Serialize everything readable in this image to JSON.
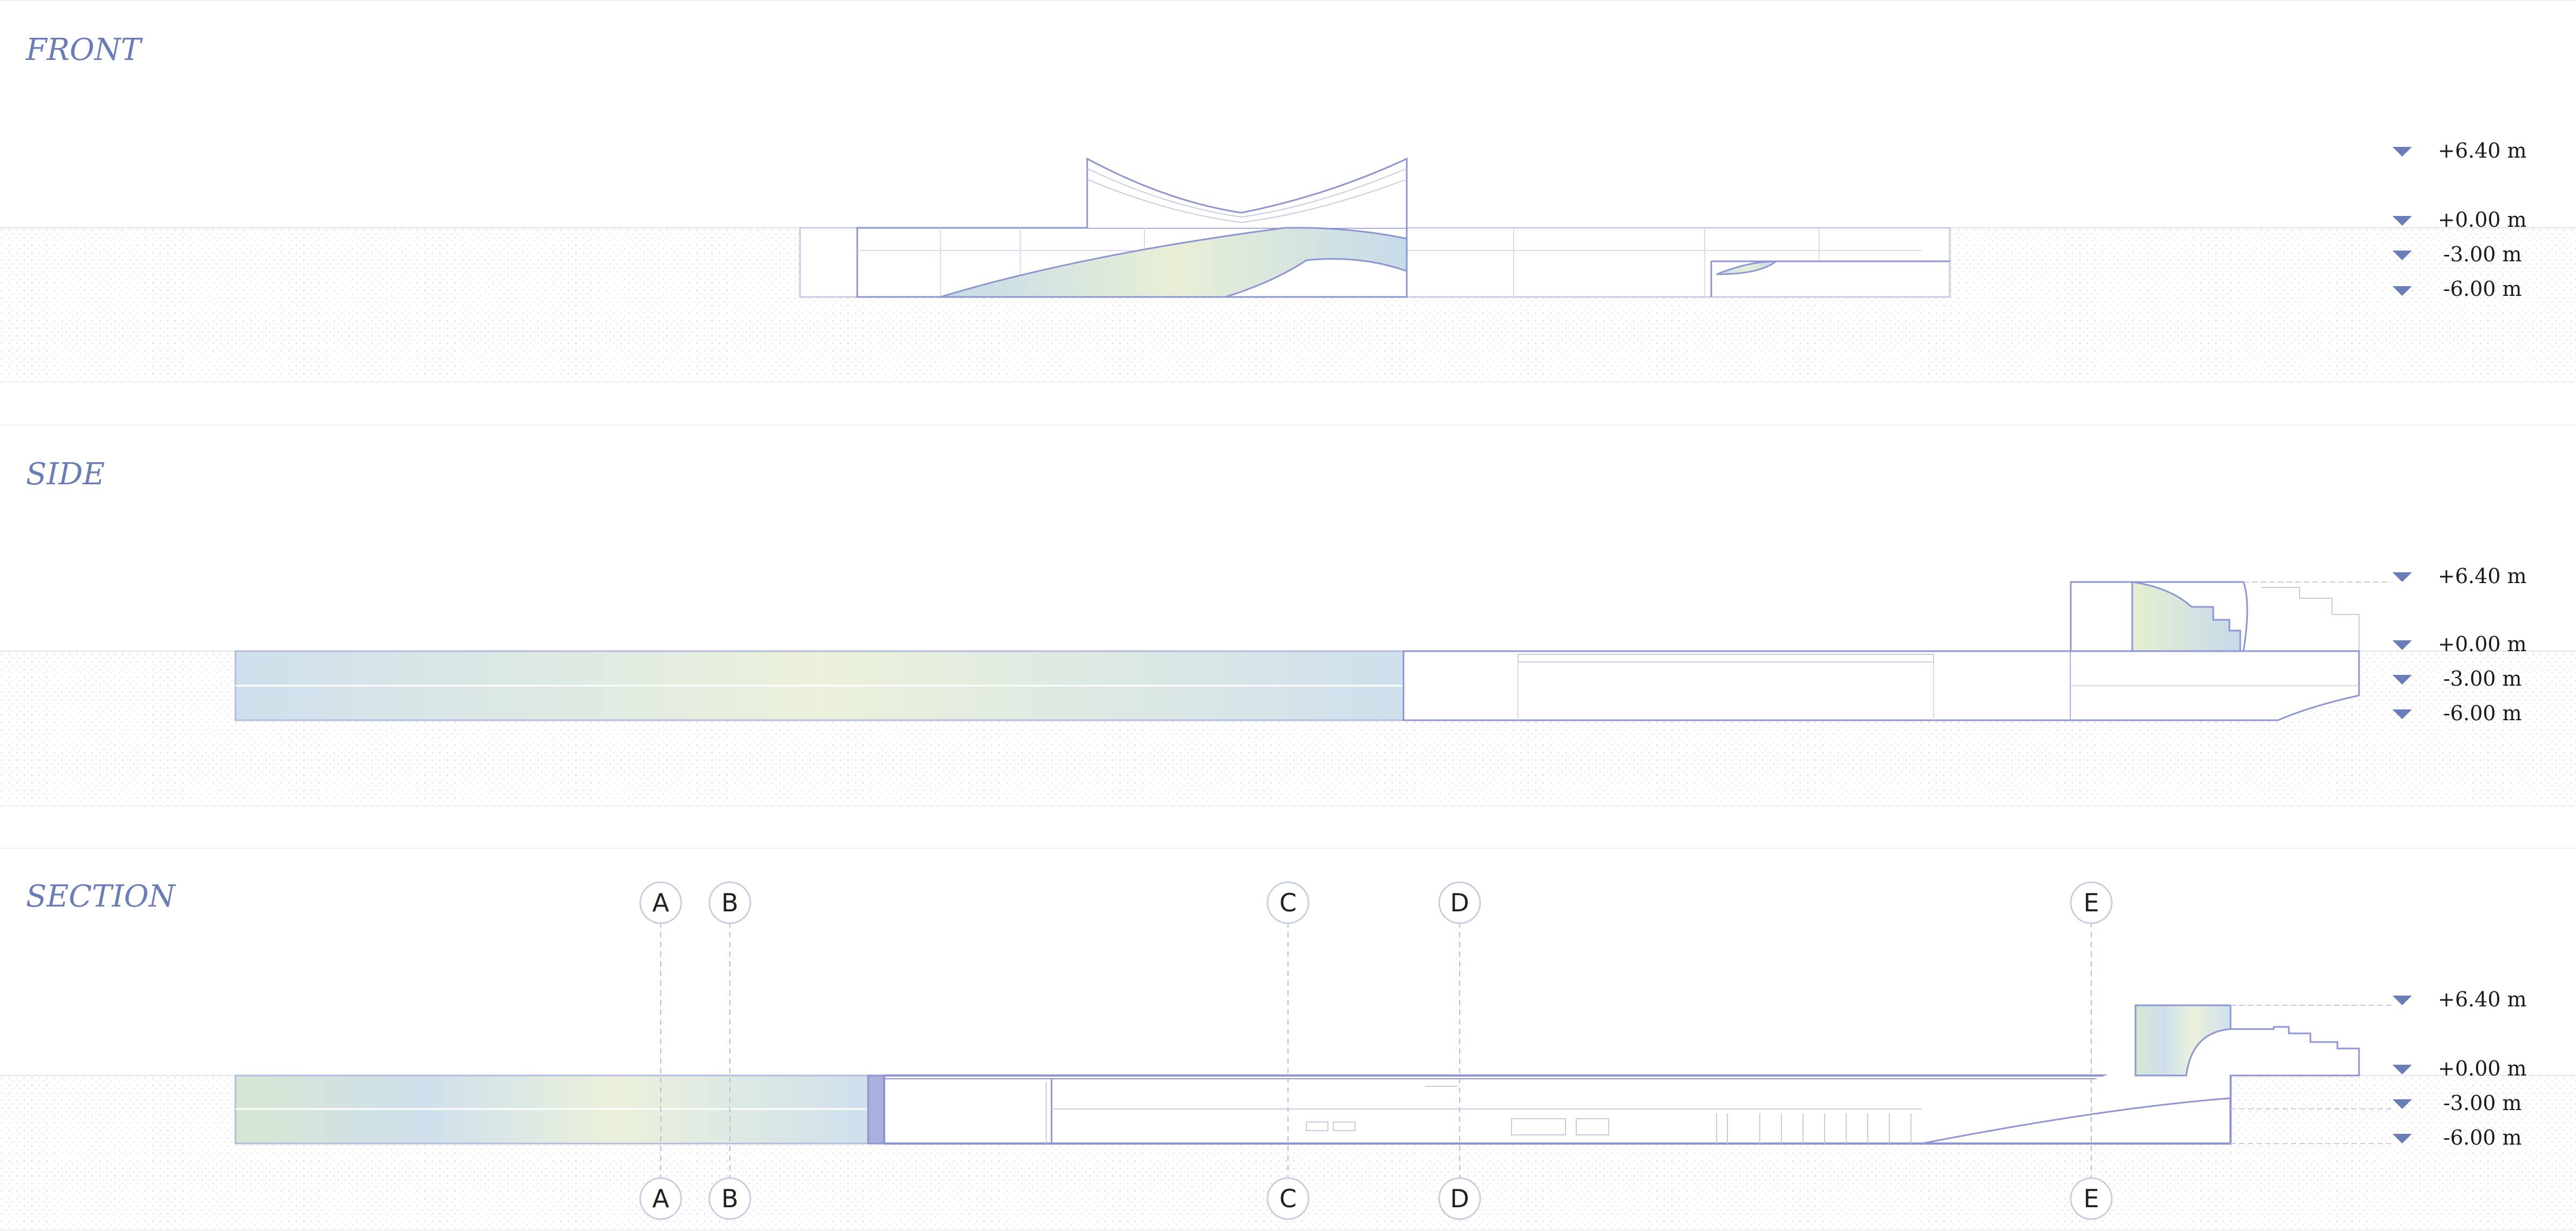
{
  "front": {
    "title": "FRONT"
  },
  "side": {
    "title": "SIDE"
  },
  "section": {
    "title": "SECTION"
  },
  "levels": [
    "+6.40 m",
    "+0.00 m",
    "-3.00 m",
    "-6.00 m"
  ],
  "grid_labels": [
    "A",
    "B",
    "C",
    "D",
    "E"
  ],
  "colors": {
    "line": "#8d96d0",
    "title": "#6b7db8",
    "ground": "#f4f5f8",
    "glass": "#cfe0ec",
    "glass_light": "#e9f0d8"
  }
}
